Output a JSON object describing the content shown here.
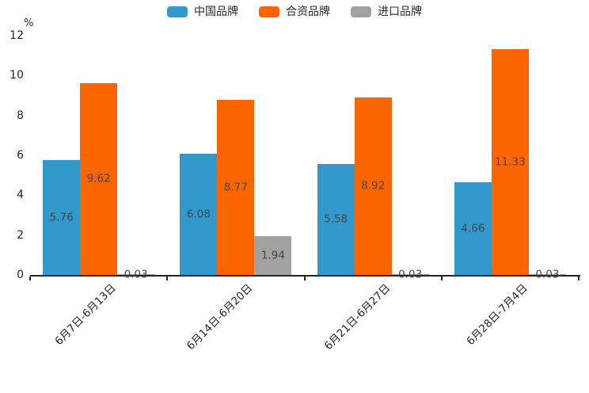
{
  "chart_data": {
    "type": "bar",
    "title": "",
    "unit_label": "%",
    "categories": [
      "6月7日-6月13日",
      "6月14日-6月20日",
      "6月21日-6月27日",
      "6月28日-7月4日"
    ],
    "series": [
      {
        "name": "中国品牌",
        "color": "#3398cc",
        "values": [
          5.76,
          6.08,
          5.58,
          4.66
        ]
      },
      {
        "name": "合资品牌",
        "color": "#fb6500",
        "values": [
          9.62,
          8.77,
          8.92,
          11.33
        ]
      },
      {
        "name": "进口品牌",
        "color": "#a2a2a2",
        "values": [
          0.03,
          1.94,
          0.03,
          0.03
        ]
      }
    ],
    "ylim": [
      0,
      12
    ],
    "yticks": [
      0,
      2,
      4,
      6,
      8,
      10,
      12
    ],
    "grid": false,
    "legend_position": "top",
    "value_labels": true
  },
  "colors": {
    "axis": "#262626",
    "value_label_text": "#454545",
    "background": "#ffffff"
  }
}
